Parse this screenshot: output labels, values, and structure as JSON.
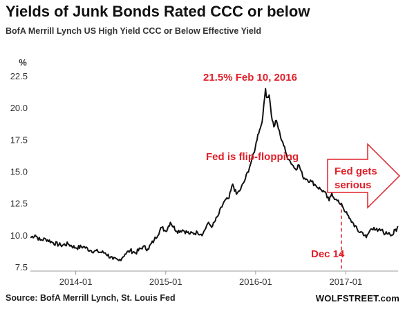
{
  "title": "Yields of Junk Bonds Rated CCC or below",
  "subtitle": "BofA Merrill Lynch US High Yield CCC or Below Effective Yield",
  "source": "Source: BofA Merrill Lynch, St. Louis Fed",
  "brand": "WOLFSTREET.com",
  "colors": {
    "line": "#111111",
    "annotation": "#e0202a",
    "axis": "#999999"
  },
  "chart_data": {
    "type": "line",
    "title": "Yields of Junk Bonds Rated CCC or below",
    "ylabel": "%",
    "xlabel": "",
    "ylim": [
      7.5,
      22.5
    ],
    "xlim": [
      "2013-07-01",
      "2017-08-01"
    ],
    "yticks": [
      "7.5",
      "10.0",
      "12.5",
      "15.0",
      "17.5",
      "20.0",
      "22.5"
    ],
    "xticks": [
      "2014-01",
      "2015-01",
      "2016-01",
      "2017-01"
    ],
    "grid": false,
    "series": [
      {
        "points": [
          [
            "2013-07-01",
            9.8
          ],
          [
            "2013-07-20",
            10.0
          ],
          [
            "2013-08-10",
            9.6
          ],
          [
            "2013-09-01",
            9.7
          ],
          [
            "2013-10-01",
            9.4
          ],
          [
            "2013-11-01",
            9.2
          ],
          [
            "2013-12-01",
            9.3
          ],
          [
            "2014-01-01",
            9.0
          ],
          [
            "2014-02-01",
            9.1
          ],
          [
            "2014-03-01",
            8.8
          ],
          [
            "2014-04-01",
            8.7
          ],
          [
            "2014-05-01",
            8.6
          ],
          [
            "2014-06-01",
            8.1
          ],
          [
            "2014-06-25",
            8.0
          ],
          [
            "2014-07-20",
            8.5
          ],
          [
            "2014-08-10",
            8.8
          ],
          [
            "2014-09-01",
            8.6
          ],
          [
            "2014-10-01",
            9.1
          ],
          [
            "2014-10-20",
            8.9
          ],
          [
            "2014-11-15",
            9.6
          ],
          [
            "2014-12-16",
            10.6
          ],
          [
            "2015-01-01",
            10.3
          ],
          [
            "2015-01-20",
            11.0
          ],
          [
            "2015-02-15",
            10.3
          ],
          [
            "2015-03-10",
            10.4
          ],
          [
            "2015-04-10",
            10.1
          ],
          [
            "2015-05-10",
            10.2
          ],
          [
            "2015-06-01",
            10.1
          ],
          [
            "2015-06-20",
            10.9
          ],
          [
            "2015-07-10",
            10.7
          ],
          [
            "2015-08-01",
            11.5
          ],
          [
            "2015-08-25",
            12.6
          ],
          [
            "2015-09-15",
            12.9
          ],
          [
            "2015-09-30",
            14.0
          ],
          [
            "2015-10-15",
            13.2
          ],
          [
            "2015-11-01",
            13.6
          ],
          [
            "2015-11-20",
            14.4
          ],
          [
            "2015-12-15",
            15.8
          ],
          [
            "2015-12-31",
            16.9
          ],
          [
            "2016-01-10",
            17.9
          ],
          [
            "2016-01-20",
            18.4
          ],
          [
            "2016-01-30",
            19.3
          ],
          [
            "2016-02-10",
            21.5
          ],
          [
            "2016-02-15",
            20.8
          ],
          [
            "2016-02-25",
            21.0
          ],
          [
            "2016-03-05",
            19.4
          ],
          [
            "2016-03-15",
            18.5
          ],
          [
            "2016-03-25",
            19.0
          ],
          [
            "2016-04-10",
            17.8
          ],
          [
            "2016-04-20",
            17.3
          ],
          [
            "2016-05-05",
            16.3
          ],
          [
            "2016-05-20",
            15.8
          ],
          [
            "2016-06-10",
            15.2
          ],
          [
            "2016-06-25",
            15.5
          ],
          [
            "2016-07-10",
            14.6
          ],
          [
            "2016-07-25",
            14.4
          ],
          [
            "2016-08-15",
            14.2
          ],
          [
            "2016-09-01",
            13.9
          ],
          [
            "2016-09-20",
            13.6
          ],
          [
            "2016-10-05",
            13.4
          ],
          [
            "2016-10-25",
            12.7
          ],
          [
            "2016-11-05",
            13.3
          ],
          [
            "2016-11-20",
            12.8
          ],
          [
            "2016-12-05",
            12.5
          ],
          [
            "2016-12-14",
            12.5
          ],
          [
            "2016-12-31",
            11.8
          ],
          [
            "2017-01-15",
            11.3
          ],
          [
            "2017-02-01",
            10.9
          ],
          [
            "2017-02-20",
            10.3
          ],
          [
            "2017-03-10",
            10.2
          ],
          [
            "2017-03-25",
            9.8
          ],
          [
            "2017-04-10",
            10.4
          ],
          [
            "2017-04-25",
            10.6
          ],
          [
            "2017-05-10",
            10.3
          ],
          [
            "2017-05-25",
            10.4
          ],
          [
            "2017-06-10",
            10.1
          ],
          [
            "2017-06-25",
            10.2
          ],
          [
            "2017-07-10",
            10.0
          ],
          [
            "2017-07-20",
            10.4
          ],
          [
            "2017-07-25",
            10.3
          ],
          [
            "2017-07-31",
            10.7
          ]
        ]
      }
    ],
    "annotations": {
      "peak": "21.5% Feb 10, 2016",
      "flip": "Fed is flip-flopping",
      "dec14": "Dec 14",
      "serious_line1": "Fed gets",
      "serious_line2": "serious"
    }
  }
}
